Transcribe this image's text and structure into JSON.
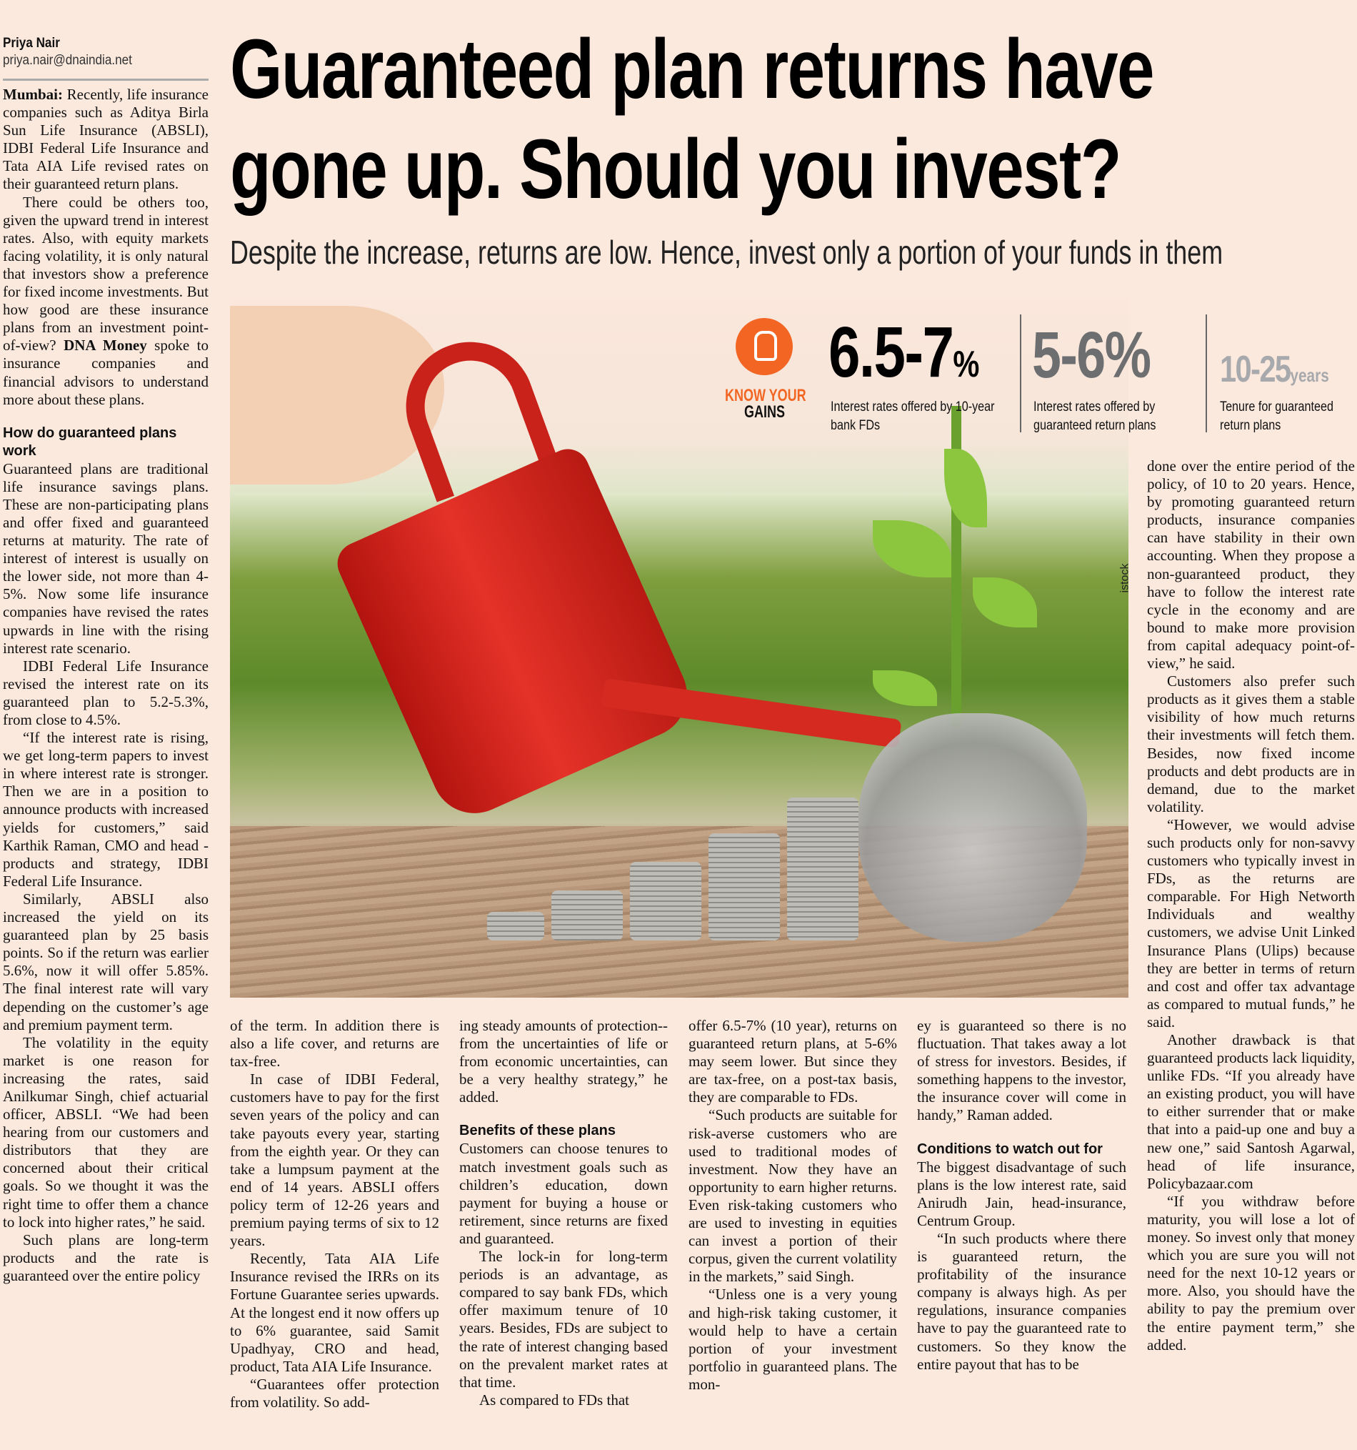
{
  "byline": {
    "name": "Priya Nair",
    "email": "priya.nair@dnaindia.net"
  },
  "headline": {
    "line1": "Guaranteed plan returns have",
    "line2": "gone up. Should you invest?"
  },
  "subheadline": "Despite the increase, returns are low. Hence, invest only a portion of your funds in them",
  "photo_credit": "istock",
  "stats": {
    "badge_line1": "KNOW YOUR",
    "badge_line2": "GAINS",
    "accent_color": "#f26522",
    "items": [
      {
        "value": "6.5-7",
        "unit": "%",
        "caption_line1": "Interest rates offered by 10-year",
        "caption_line2": "bank FDs"
      },
      {
        "value": "5-6%",
        "unit": "",
        "caption_line1": "Interest rates offered by",
        "caption_line2": "guaranteed return plans"
      },
      {
        "value": "10-25",
        "unit": "years",
        "caption_line1": "Tenure for guaranteed",
        "caption_line2": "return plans"
      }
    ]
  },
  "left_column": {
    "dateline": "Mumbai:",
    "p0": " Recently, life insurance companies such as Aditya Birla Sun Life Insurance (ABSLI), IDBI Federal Life Insurance and Tata AIA Life revised rates on their guaranteed return plans.",
    "p1a": "There could be others too, given the upward trend in interest rates. Also, with equity markets facing volatility, it is only natural that investors show a preference for fixed income investments. But how good are these insurance plans from an investment point-of-view? ",
    "p1_bold": "DNA Money",
    "p1b": " spoke to insurance companies and financial advisors to understand more about these plans.",
    "heading": "How do guaranteed plans work",
    "paras": [
      "Guaranteed plans are traditional life insurance savings plans. These are non-participating plans and offer fixed and guaranteed returns at maturity. The rate of interest of interest is usually on the lower side, not more than 4-5%. Now some life insurance companies have revised the rates upwards in line with the rising interest rate scenario.",
      "IDBI Federal Life Insurance revised the interest rate on its guaranteed plan to 5.2-5.3%, from close to 4.5%.",
      "“If the interest rate is rising, we get long-term papers to invest in where interest rate is stronger. Then we are in a position to announce products with increased yields for customers,” said Karthik Raman, CMO and head - products and strategy, IDBI Federal Life Insurance.",
      "Similarly, ABSLI also increased the yield on its guaranteed plan by 25 basis points. So if the return was earlier 5.6%, now it will offer 5.85%. The final interest rate will vary depending on the customer’s age and premium payment term.",
      "The volatility in the equity market is one reason for increasing the rates, said Anilkumar Singh, chief actuarial officer, ABSLI. “We had been hearing from our customers and distributors that they are concerned about their critical goals. So we thought it was the right time to offer them a chance to lock into higher rates,” he said.",
      "Such plans are long-term products and the rate is guaranteed over the entire policy"
    ]
  },
  "col2": {
    "paras": [
      "of the term. In addition there is also a life cover, and returns are tax-free.",
      "In case of IDBI Federal, customers have to pay for the first seven years of the policy and can take payouts every year, starting from the eighth year. Or they can take a lumpsum payment at the end of 14 years. ABSLI offers policy term of 12-26 years and premium paying terms of six to 12 years.",
      "Recently, Tata AIA Life Insurance revised the IRRs on its Fortune Guarantee series upwards. At the longest end it now offers up to 6% guarantee, said Samit Upadhyay, CRO and head, product, Tata AIA Life Insurance.",
      "“Guarantees offer protection from volatility. So add-"
    ]
  },
  "col3": {
    "p0": "ing steady amounts of protection-- from the uncertainties of life or from economic uncertainties, can be a very healthy strategy,” he added.",
    "heading": "Benefits of these plans",
    "paras": [
      "Customers can choose tenures to match investment goals such as children’s education, down payment for buying a house or retirement, since returns are fixed and guaranteed.",
      "The lock-in for long-term periods is an advantage, as compared to say bank FDs, which offer maximum tenure of 10 years. Besides, FDs are subject to the rate of interest changing based on the prevalent market rates at that time.",
      "As compared to FDs that"
    ]
  },
  "col4": {
    "paras": [
      "offer 6.5-7% (10 year), returns on guaranteed return plans, at 5-6% may seem lower. But since they are tax-free, on a post-tax basis, they are comparable to FDs.",
      "“Such products are suitable for risk-averse customers who are used to traditional modes of investment. Now they have an opportunity to earn higher returns. Even risk-taking customers who are used to investing in equities can invest a portion of their corpus, given the current volatility in the markets,” said Singh.",
      "“Unless one is a very young and high-risk taking customer, it would help to have a certain portion of your investment portfolio in guaranteed plans. The mon-"
    ]
  },
  "col5": {
    "p0": "ey is guaranteed so there is no fluctuation. That takes away a lot of stress for investors. Besides, if something happens to the investor, the insurance cover will come in handy,” Raman added.",
    "heading": "Conditions to watch out for",
    "paras": [
      "The biggest disadvantage of such plans is the low interest rate, said Anirudh Jain, head-insurance, Centrum Group.",
      "“In such products where there is guaranteed return, the profitability of the insurance company is always high. As per regulations, insurance companies have to pay the guaranteed rate to customers. So they know the entire payout that has to be"
    ]
  },
  "right_column": {
    "paras": [
      "done over the entire period of the policy, of 10 to 20 years. Hence, by promoting guaranteed return products, insurance companies can have stability in their own accounting. When they propose a non-guaranteed product, they have to follow the interest rate cycle in the economy and are bound to make more provision from capital adequacy point-of-view,” he said.",
      "Customers also prefer such products as it gives them a stable visibility of how much returns their investments will fetch them. Besides, now fixed income products and debt products are in demand, due to the market volatility.",
      "“However, we would advise such products only for non-savvy customers who typically invest in FDs, as the returns are comparable. For High Networth Individuals and wealthy customers, we advise Unit Linked Insurance Plans (Ulips) because they are better in terms of return and cost and offer tax advantage as compared to mutual funds,” he said.",
      "Another drawback is that guaranteed products lack liquidity, unlike FDs. “If you already have an existing product, you will have to either surrender that or make that into a paid-up one and buy a new one,” said Santosh Agarwal, head of life insurance, Policybazaar.com",
      "“If you withdraw before maturity, you will lose a lot of money. So invest only that money which you are sure you will not need for the next 10-12 years or more. Also, you should have the ability to pay the premium over the entire payment term,” she added."
    ]
  }
}
